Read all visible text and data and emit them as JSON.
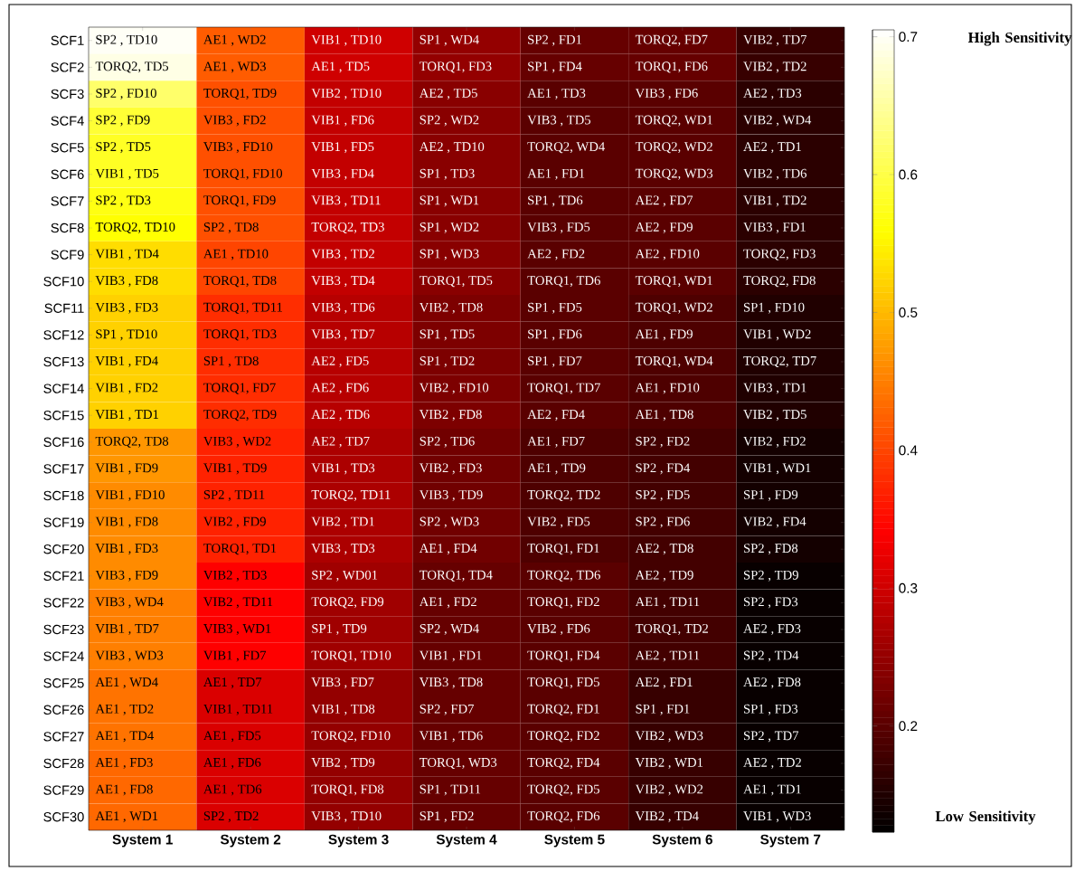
{
  "chart_data": {
    "type": "heatmap",
    "categories": [
      "System 1",
      "System 2",
      "System 3",
      "System 4",
      "System 5",
      "System 6",
      "System 7"
    ],
    "y_categories": [
      "SCF1",
      "SCF2",
      "SCF3",
      "SCF4",
      "SCF5",
      "SCF6",
      "SCF7",
      "SCF8",
      "SCF9",
      "SCF10",
      "SCF11",
      "SCF12",
      "SCF13",
      "SCF14",
      "SCF15",
      "SCF16",
      "SCF17",
      "SCF18",
      "SCF19",
      "SCF20",
      "SCF21",
      "SCF22",
      "SCF23",
      "SCF24",
      "SCF25",
      "SCF26",
      "SCF27",
      "SCF28",
      "SCF29",
      "SCF30"
    ],
    "cells": [
      [
        0.7,
        0.42,
        0.3,
        0.25,
        0.21,
        0.21,
        0.17
      ],
      [
        0.69,
        0.42,
        0.3,
        0.25,
        0.21,
        0.21,
        0.17
      ],
      [
        0.62,
        0.41,
        0.29,
        0.24,
        0.2,
        0.2,
        0.16
      ],
      [
        0.59,
        0.41,
        0.29,
        0.24,
        0.2,
        0.2,
        0.16
      ],
      [
        0.58,
        0.41,
        0.29,
        0.24,
        0.2,
        0.2,
        0.16
      ],
      [
        0.58,
        0.41,
        0.29,
        0.24,
        0.2,
        0.2,
        0.16
      ],
      [
        0.57,
        0.41,
        0.29,
        0.24,
        0.2,
        0.2,
        0.16
      ],
      [
        0.56,
        0.41,
        0.29,
        0.24,
        0.2,
        0.2,
        0.16
      ],
      [
        0.53,
        0.4,
        0.29,
        0.24,
        0.2,
        0.2,
        0.16
      ],
      [
        0.53,
        0.4,
        0.29,
        0.24,
        0.2,
        0.2,
        0.16
      ],
      [
        0.52,
        0.38,
        0.28,
        0.23,
        0.2,
        0.19,
        0.15
      ],
      [
        0.52,
        0.38,
        0.28,
        0.23,
        0.2,
        0.19,
        0.15
      ],
      [
        0.52,
        0.38,
        0.28,
        0.23,
        0.2,
        0.19,
        0.15
      ],
      [
        0.52,
        0.38,
        0.28,
        0.23,
        0.2,
        0.19,
        0.15
      ],
      [
        0.52,
        0.38,
        0.28,
        0.23,
        0.2,
        0.19,
        0.15
      ],
      [
        0.47,
        0.37,
        0.27,
        0.22,
        0.19,
        0.18,
        0.14
      ],
      [
        0.47,
        0.37,
        0.27,
        0.22,
        0.19,
        0.18,
        0.14
      ],
      [
        0.46,
        0.37,
        0.27,
        0.22,
        0.19,
        0.18,
        0.14
      ],
      [
        0.46,
        0.37,
        0.27,
        0.22,
        0.19,
        0.18,
        0.14
      ],
      [
        0.46,
        0.37,
        0.27,
        0.22,
        0.19,
        0.18,
        0.14
      ],
      [
        0.46,
        0.34,
        0.26,
        0.21,
        0.2,
        0.18,
        0.13
      ],
      [
        0.45,
        0.34,
        0.26,
        0.21,
        0.2,
        0.18,
        0.13
      ],
      [
        0.45,
        0.34,
        0.26,
        0.21,
        0.2,
        0.18,
        0.13
      ],
      [
        0.45,
        0.34,
        0.26,
        0.21,
        0.2,
        0.18,
        0.13
      ],
      [
        0.44,
        0.31,
        0.25,
        0.21,
        0.2,
        0.17,
        0.13
      ],
      [
        0.44,
        0.31,
        0.25,
        0.21,
        0.2,
        0.17,
        0.13
      ],
      [
        0.44,
        0.31,
        0.25,
        0.21,
        0.2,
        0.17,
        0.13
      ],
      [
        0.43,
        0.31,
        0.25,
        0.21,
        0.2,
        0.17,
        0.13
      ],
      [
        0.43,
        0.31,
        0.25,
        0.21,
        0.2,
        0.17,
        0.13
      ],
      [
        0.43,
        0.31,
        0.25,
        0.21,
        0.2,
        0.17,
        0.13
      ]
    ],
    "cell_labels": [
      [
        "SP2 , TD10",
        "AE1 , WD2",
        "VIB1 , TD10",
        "SP1 , WD4",
        "SP2 , FD1",
        "TORQ2, FD7",
        "VIB2 , TD7"
      ],
      [
        "TORQ2, TD5",
        "AE1 , WD3",
        "AE1 , TD5",
        "TORQ1, FD3",
        "SP1 , FD4",
        "TORQ1, FD6",
        "VIB2 , TD2"
      ],
      [
        "SP2 , FD10",
        "TORQ1, TD9",
        "VIB2 , TD10",
        "AE2 , TD5",
        "AE1 , TD3",
        "VIB3 , FD6",
        "AE2 , TD3"
      ],
      [
        "SP2 , FD9",
        "VIB3 , FD2",
        "VIB1 , FD6",
        "SP2 , WD2",
        "VIB3 , TD5",
        "TORQ2, WD1",
        "VIB2 , WD4"
      ],
      [
        "SP2 , TD5",
        "VIB3 , FD10",
        "VIB1 , FD5",
        "AE2 , TD10",
        "TORQ2, WD4",
        "TORQ2, WD2",
        "AE2 , TD1"
      ],
      [
        "VIB1 , TD5",
        "TORQ1, FD10",
        "VIB3 , FD4",
        "SP1 , TD3",
        "AE1 , FD1",
        "TORQ2, WD3",
        "VIB2 , TD6"
      ],
      [
        "SP2 , TD3",
        "TORQ1, FD9",
        "VIB3 , TD11",
        "SP1 , WD1",
        "SP1 , TD6",
        "AE2 , FD7",
        "VIB1 , TD2"
      ],
      [
        "TORQ2, TD10",
        "SP2 , TD8",
        "TORQ2, TD3",
        "SP1 , WD2",
        "VIB3 , FD5",
        "AE2 , FD9",
        "VIB3 , FD1"
      ],
      [
        "VIB1 , TD4",
        "AE1 , TD10",
        "VIB3 , TD2",
        "SP1 , WD3",
        "AE2 , FD2",
        "AE2 , FD10",
        "TORQ2, FD3"
      ],
      [
        "VIB3 , FD8",
        "TORQ1, TD8",
        "VIB3 , TD4",
        "TORQ1, TD5",
        "TORQ1, TD6",
        "TORQ1, WD1",
        "TORQ2, FD8"
      ],
      [
        "VIB3 , FD3",
        "TORQ1, TD11",
        "VIB3 , TD6",
        "VIB2 , TD8",
        "SP1 , FD5",
        "TORQ1, WD2",
        "SP1 , FD10"
      ],
      [
        "SP1 , TD10",
        "TORQ1, TD3",
        "VIB3 , TD7",
        "SP1 , TD5",
        "SP1 , FD6",
        "AE1 , FD9",
        "VIB1 , WD2"
      ],
      [
        "VIB1 , FD4",
        "SP1 , TD8",
        "AE2 , FD5",
        "SP1 , TD2",
        "SP1 , FD7",
        "TORQ1, WD4",
        "TORQ2, TD7"
      ],
      [
        "VIB1 , FD2",
        "TORQ1, FD7",
        "AE2 , FD6",
        "VIB2 , FD10",
        "TORQ1, TD7",
        "AE1 , FD10",
        "VIB3 , TD1"
      ],
      [
        "VIB1 , TD1",
        "TORQ2, TD9",
        "AE2 , TD6",
        "VIB2 , FD8",
        "AE2 , FD4",
        "AE1 , TD8",
        "VIB2 , TD5"
      ],
      [
        "TORQ2, TD8",
        "VIB3 , WD2",
        "AE2 , TD7",
        "SP2 , TD6",
        "AE1 , FD7",
        "SP2 , FD2",
        "VIB2 , FD2"
      ],
      [
        "VIB1 , FD9",
        "VIB1 , TD9",
        "VIB1 , TD3",
        "VIB2 , FD3",
        "AE1 , TD9",
        "SP2 , FD4",
        "VIB1 , WD1"
      ],
      [
        "VIB1 , FD10",
        "SP2 , TD11",
        "TORQ2, TD11",
        "VIB3 , TD9",
        "TORQ2, TD2",
        "SP2 , FD5",
        "SP1 , FD9"
      ],
      [
        "VIB1 , FD8",
        "VIB2 , FD9",
        "VIB2 , TD1",
        "SP2 , WD3",
        "VIB2 , FD5",
        "SP2 , FD6",
        "VIB2 , FD4"
      ],
      [
        "VIB1 , FD3",
        "TORQ1, TD1",
        "VIB3 , TD3",
        "AE1 , FD4",
        "TORQ1, FD1",
        "AE2 , TD8",
        "SP2 , FD8"
      ],
      [
        "VIB3 , FD9",
        "VIB2 , TD3",
        "SP2 , WD01",
        "TORQ1, TD4",
        "TORQ2, TD6",
        "AE2 , TD9",
        "SP2 , TD9"
      ],
      [
        "VIB3 , WD4",
        "VIB2 , TD11",
        "TORQ2, FD9",
        "AE1 , FD2",
        "TORQ1, FD2",
        "AE1 , TD11",
        "SP2 , FD3"
      ],
      [
        "VIB1 , TD7",
        "VIB3 , WD1",
        "SP1 , TD9",
        "SP2 , WD4",
        "VIB2 , FD6",
        "TORQ1, TD2",
        "AE2 , FD3"
      ],
      [
        "VIB3 , WD3",
        "VIB1 , FD7",
        "TORQ1, TD10",
        "VIB1 , FD1",
        "TORQ1, FD4",
        "AE2 , TD11",
        "SP2 , TD4"
      ],
      [
        "AE1 , WD4",
        "AE1 , TD7",
        "VIB3 , FD7",
        "VIB3 , TD8",
        "TORQ1, FD5",
        "AE2 , FD1",
        "AE2 , FD8"
      ],
      [
        "AE1 , TD2",
        "VIB1 , TD11",
        "VIB1 , TD8",
        "SP2 , FD7",
        "TORQ2, FD1",
        "SP1 , FD1",
        "SP1 , FD3"
      ],
      [
        "AE1 , TD4",
        "AE1 , FD5",
        "TORQ2, FD10",
        "VIB1 , TD6",
        "TORQ2, FD2",
        "VIB2 , WD3",
        "SP2 , TD7"
      ],
      [
        "AE1 , FD3",
        "AE1 , FD6",
        "VIB2 , TD9",
        "TORQ1, WD3",
        "TORQ2, FD4",
        "VIB2 , WD1",
        "AE2 , TD2"
      ],
      [
        "AE1 , FD8",
        "AE1 , TD6",
        "TORQ1, FD8",
        "SP1 , TD11",
        "TORQ2, FD5",
        "VIB2 , WD2",
        "AE1 , TD1"
      ],
      [
        "AE1 , WD1",
        "SP2 , TD2",
        "VIB3 , TD10",
        "SP1 , FD2",
        "TORQ2, FD6",
        "VIB2 , TD4",
        "VIB1 , WD3"
      ]
    ],
    "clim": [
      0.123,
      0.705
    ],
    "cticks": [
      0.2,
      0.3,
      0.4,
      0.5,
      0.6,
      0.7
    ],
    "annotations": [
      "High Sensitivity",
      "Low Sensitivity"
    ]
  }
}
